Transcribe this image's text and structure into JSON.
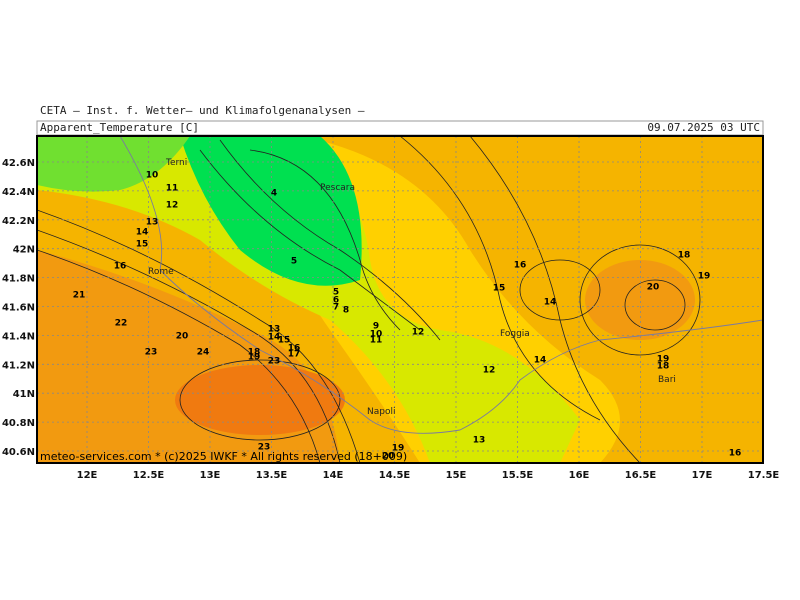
{
  "header": {
    "institute": "CETA — Inst. f. Wetter— und Klimafolgenanalysen —",
    "title": "Apparent_Temperature [C]",
    "date": "09.07.2025 03 UTC",
    "credit": "meteo-services.com * (c)2025 IWKF * All rights reserved (18+009)"
  },
  "axes": {
    "xticks": [
      {
        "value": 12,
        "label": "12E"
      },
      {
        "value": 12.5,
        "label": "12.5E"
      },
      {
        "value": 13,
        "label": "13E"
      },
      {
        "value": 13.5,
        "label": "13.5E"
      },
      {
        "value": 14,
        "label": "14E"
      },
      {
        "value": 14.5,
        "label": "14.5E"
      },
      {
        "value": 15,
        "label": "15E"
      },
      {
        "value": 15.5,
        "label": "15.5E"
      },
      {
        "value": 16,
        "label": "16E"
      },
      {
        "value": 16.5,
        "label": "16.5E"
      },
      {
        "value": 17,
        "label": "17E"
      },
      {
        "value": 17.5,
        "label": "17.5E"
      }
    ],
    "yticks": [
      {
        "value": 42.6,
        "label": "42.6N"
      },
      {
        "value": 42.4,
        "label": "42.4N"
      },
      {
        "value": 42.2,
        "label": "42.2N"
      },
      {
        "value": 42,
        "label": "42N"
      },
      {
        "value": 41.8,
        "label": "41.8N"
      },
      {
        "value": 41.6,
        "label": "41.6N"
      },
      {
        "value": 41.4,
        "label": "41.4N"
      },
      {
        "value": 41.2,
        "label": "41.2N"
      },
      {
        "value": 41,
        "label": "41N"
      },
      {
        "value": 40.8,
        "label": "40.8N"
      },
      {
        "value": 40.6,
        "label": "40.6N"
      }
    ]
  },
  "cities": [
    "Terni",
    "Pescara",
    "Rome",
    "Foggia",
    "Napoli",
    "Bari"
  ],
  "contour_labels": [
    10,
    11,
    12,
    13,
    14,
    15,
    16,
    21,
    22,
    23,
    20,
    24,
    4,
    5,
    5,
    6,
    7,
    8,
    13,
    14,
    15,
    16,
    17,
    18,
    19,
    23,
    9,
    10,
    11,
    12,
    15,
    16,
    14,
    14,
    12,
    20,
    18,
    19,
    19,
    18,
    13,
    19,
    20,
    23,
    16
  ]
}
